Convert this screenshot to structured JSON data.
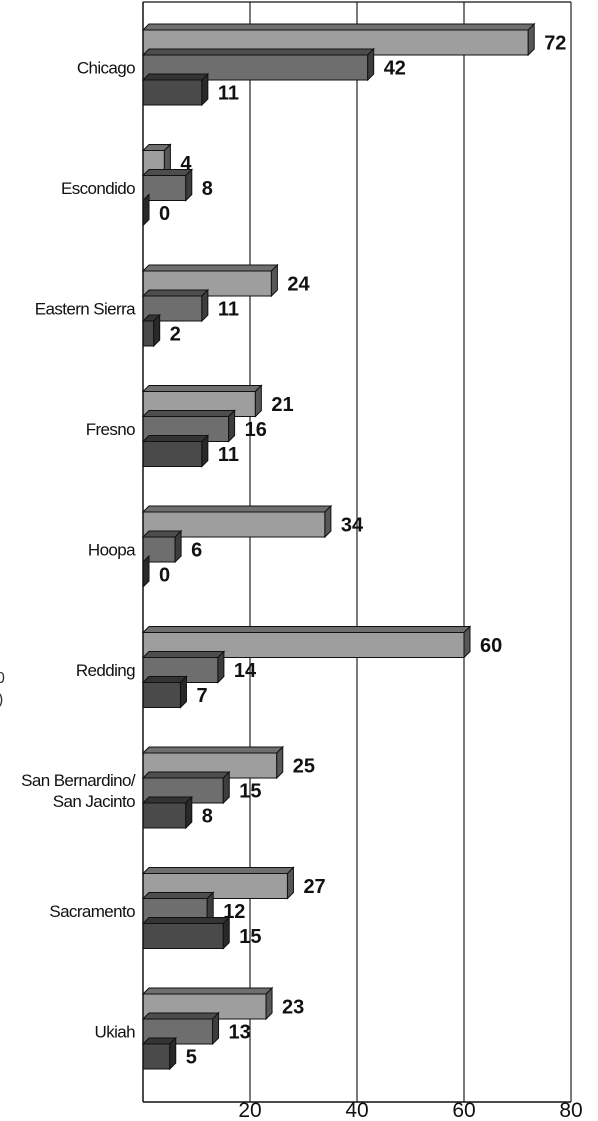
{
  "chart_data": {
    "type": "bar",
    "orientation": "horizontal",
    "categories": [
      "Chicago",
      "Escondido",
      "Eastern Sierra",
      "Fresno",
      "Hoopa",
      "Redding",
      "San Bernardino/ San Jacinto",
      "Sacramento",
      "Ukiah"
    ],
    "series": [
      {
        "values": [
          72,
          4,
          24,
          21,
          34,
          60,
          25,
          27,
          23
        ],
        "color": "#9e9e9e"
      },
      {
        "values": [
          42,
          8,
          11,
          16,
          6,
          14,
          15,
          12,
          13
        ],
        "color": "#6e6e6e"
      },
      {
        "values": [
          11,
          0,
          2,
          11,
          0,
          7,
          8,
          15,
          5
        ],
        "color": "#4a4a4a"
      }
    ],
    "xlim": [
      0,
      80
    ],
    "xticks": [
      20,
      40,
      60,
      80
    ],
    "grid": true
  },
  "edge_fragments": [
    "0",
    ")"
  ]
}
